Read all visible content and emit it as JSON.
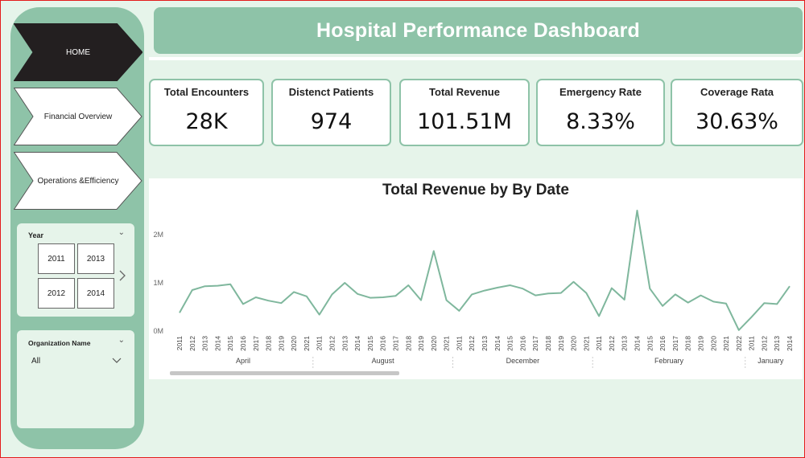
{
  "nav": {
    "home": "HOME",
    "financial": "Financial Overview",
    "operations_line1": "Operations &",
    "operations_line2": "Efficiency"
  },
  "year_slicer": {
    "title": "Year",
    "years": [
      "2011",
      "2013",
      "2012",
      "2014"
    ]
  },
  "org_slicer": {
    "title": "Organization Name",
    "selected": "All"
  },
  "header": {
    "title": "Hospital Performance Dashboard"
  },
  "kpis": [
    {
      "label": "Total Encounters",
      "value": "28K"
    },
    {
      "label": "Distenct Patients",
      "value": "974"
    },
    {
      "label": "Total Revenue",
      "value": "101.51M"
    },
    {
      "label": "Emergency Rate",
      "value": "8.33%"
    },
    {
      "label": "Coverage Rata",
      "value": "30.63%"
    }
  ],
  "colors": {
    "accent": "#8ec3a8",
    "line": "#7fb79d",
    "background": "#e6f4ea"
  },
  "chart_data": {
    "type": "line",
    "title": "Total Revenue by By Date",
    "y_ticks": [
      "2M",
      "1M",
      "0M"
    ],
    "ylim": [
      0,
      2500000
    ],
    "x_labels": [
      "2011",
      "2012",
      "2013",
      "2014",
      "2015",
      "2016",
      "2017",
      "2018",
      "2019",
      "2020",
      "2021",
      "2011",
      "2012",
      "2013",
      "2014",
      "2015",
      "2016",
      "2017",
      "2018",
      "2019",
      "2020",
      "2021",
      "2011",
      "2012",
      "2013",
      "2014",
      "2015",
      "2016",
      "2017",
      "2018",
      "2019",
      "2020",
      "2021",
      "2011",
      "2012",
      "2013",
      "2014",
      "2015",
      "2016",
      "2017",
      "2018",
      "2019",
      "2020",
      "2021",
      "2022",
      "2011",
      "2012",
      "2013",
      "2014"
    ],
    "groups": [
      {
        "label": "April",
        "start": 0,
        "end": 10
      },
      {
        "label": "August",
        "start": 11,
        "end": 21
      },
      {
        "label": "December",
        "start": 22,
        "end": 32
      },
      {
        "label": "February",
        "start": 33,
        "end": 44
      },
      {
        "label": "January",
        "start": 45,
        "end": 48
      }
    ],
    "values": [
      380000,
      850000,
      930000,
      940000,
      970000,
      560000,
      700000,
      630000,
      580000,
      810000,
      720000,
      340000,
      760000,
      1000000,
      770000,
      690000,
      700000,
      730000,
      950000,
      640000,
      1660000,
      640000,
      420000,
      760000,
      840000,
      900000,
      950000,
      880000,
      740000,
      780000,
      790000,
      1020000,
      790000,
      310000,
      890000,
      650000,
      2500000,
      880000,
      520000,
      760000,
      590000,
      740000,
      610000,
      570000,
      20000,
      290000,
      580000,
      560000,
      930000
    ]
  }
}
